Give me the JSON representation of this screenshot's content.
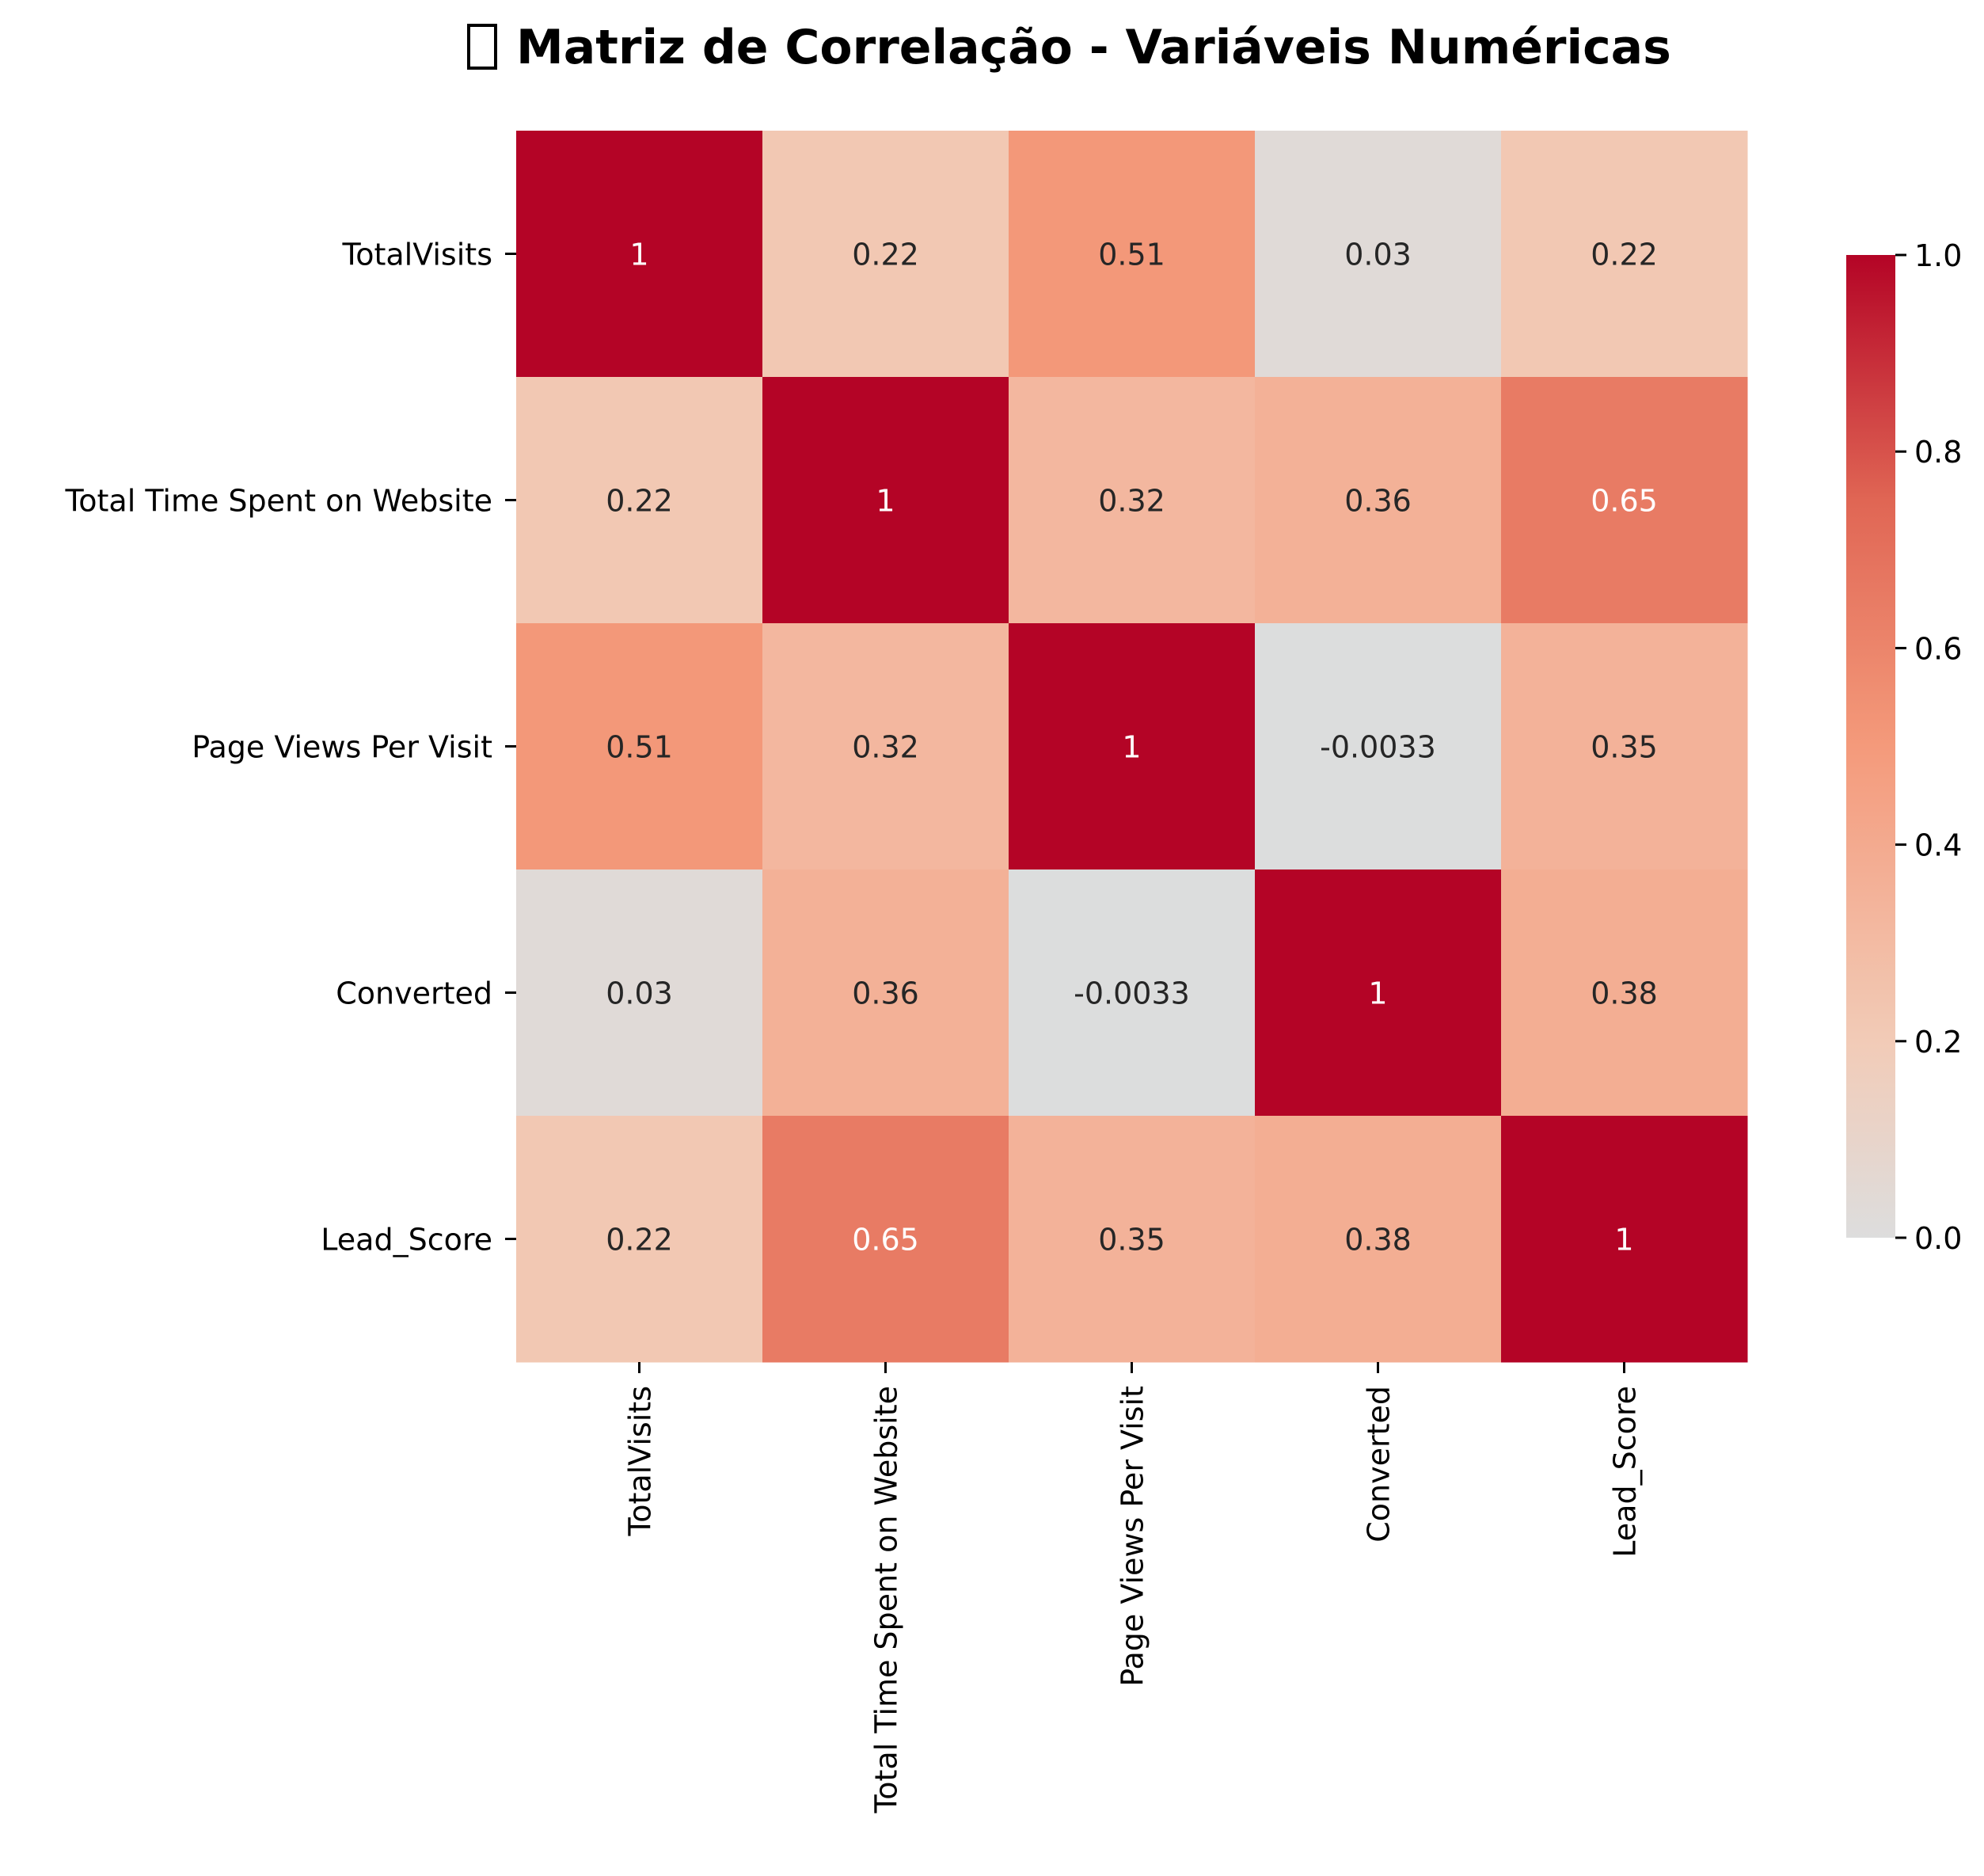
{
  "chart_data": {
    "type": "heatmap",
    "title": "Matriz de Correlação - Variáveis Numéricas",
    "title_icon": "chart-emoji-missing-glyph",
    "rows": [
      "TotalVisits",
      "Total Time Spent on Website",
      "Page Views Per Visit",
      "Converted",
      "Lead_Score"
    ],
    "columns": [
      "TotalVisits",
      "Total Time Spent on Website",
      "Page Views Per Visit",
      "Converted",
      "Lead_Score"
    ],
    "values": [
      [
        1,
        0.22,
        0.51,
        0.03,
        0.22
      ],
      [
        0.22,
        1,
        0.32,
        0.36,
        0.65
      ],
      [
        0.51,
        0.32,
        1,
        -0.0033,
        0.35
      ],
      [
        0.03,
        0.36,
        -0.0033,
        1,
        0.38
      ],
      [
        0.22,
        0.65,
        0.35,
        0.38,
        1
      ]
    ],
    "annotations": [
      [
        "1",
        "0.22",
        "0.51",
        "0.03",
        "0.22"
      ],
      [
        "0.22",
        "1",
        "0.32",
        "0.36",
        "0.65"
      ],
      [
        "0.51",
        "0.32",
        "1",
        "-0.0033",
        "0.35"
      ],
      [
        "0.03",
        "0.36",
        "-0.0033",
        "1",
        "0.38"
      ],
      [
        "0.22",
        "0.65",
        "0.35",
        "0.38",
        "1"
      ]
    ],
    "colormap": "coolwarm",
    "center": 0,
    "colorbar": {
      "range": [
        0.0,
        1.0
      ],
      "ticks": [
        0.0,
        0.2,
        0.4,
        0.6,
        0.8,
        1.0
      ],
      "tick_labels": [
        "0.0",
        "0.2",
        "0.4",
        "0.6",
        "0.8",
        "1.0"
      ]
    },
    "grid": false
  }
}
